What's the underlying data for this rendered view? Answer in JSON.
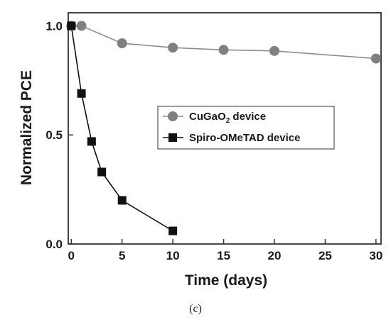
{
  "caption": "(c)",
  "chart_data": {
    "type": "line",
    "xlabel": "Time (days)",
    "ylabel": "Normalized PCE",
    "xlim": [
      -0.3,
      30.5
    ],
    "ylim": [
      0.0,
      1.06
    ],
    "x_ticks": [
      0,
      5,
      10,
      15,
      20,
      25,
      30
    ],
    "y_ticks": [
      0.0,
      0.5,
      1.0
    ],
    "x_tick_labels": [
      "0",
      "5",
      "10",
      "15",
      "20",
      "25",
      "30"
    ],
    "y_tick_labels": [
      "0.0",
      "0.5",
      "1.0"
    ],
    "grid": false,
    "legend_position": "center-right",
    "series": [
      {
        "name_parts": [
          "CuGaO",
          "2",
          " device"
        ],
        "marker": "circle",
        "color": "#808080",
        "line_color": "#8c8c8c",
        "x": [
          0,
          1,
          5,
          10,
          15,
          20,
          30
        ],
        "y": [
          1.0,
          1.0,
          0.92,
          0.9,
          0.89,
          0.885,
          0.85
        ]
      },
      {
        "name": "Spiro-OMeTAD device",
        "marker": "square",
        "color": "#111111",
        "line_color": "#111111",
        "x": [
          0,
          1,
          2,
          3,
          5,
          10
        ],
        "y": [
          1.0,
          0.69,
          0.47,
          0.33,
          0.2,
          0.06
        ]
      }
    ]
  }
}
